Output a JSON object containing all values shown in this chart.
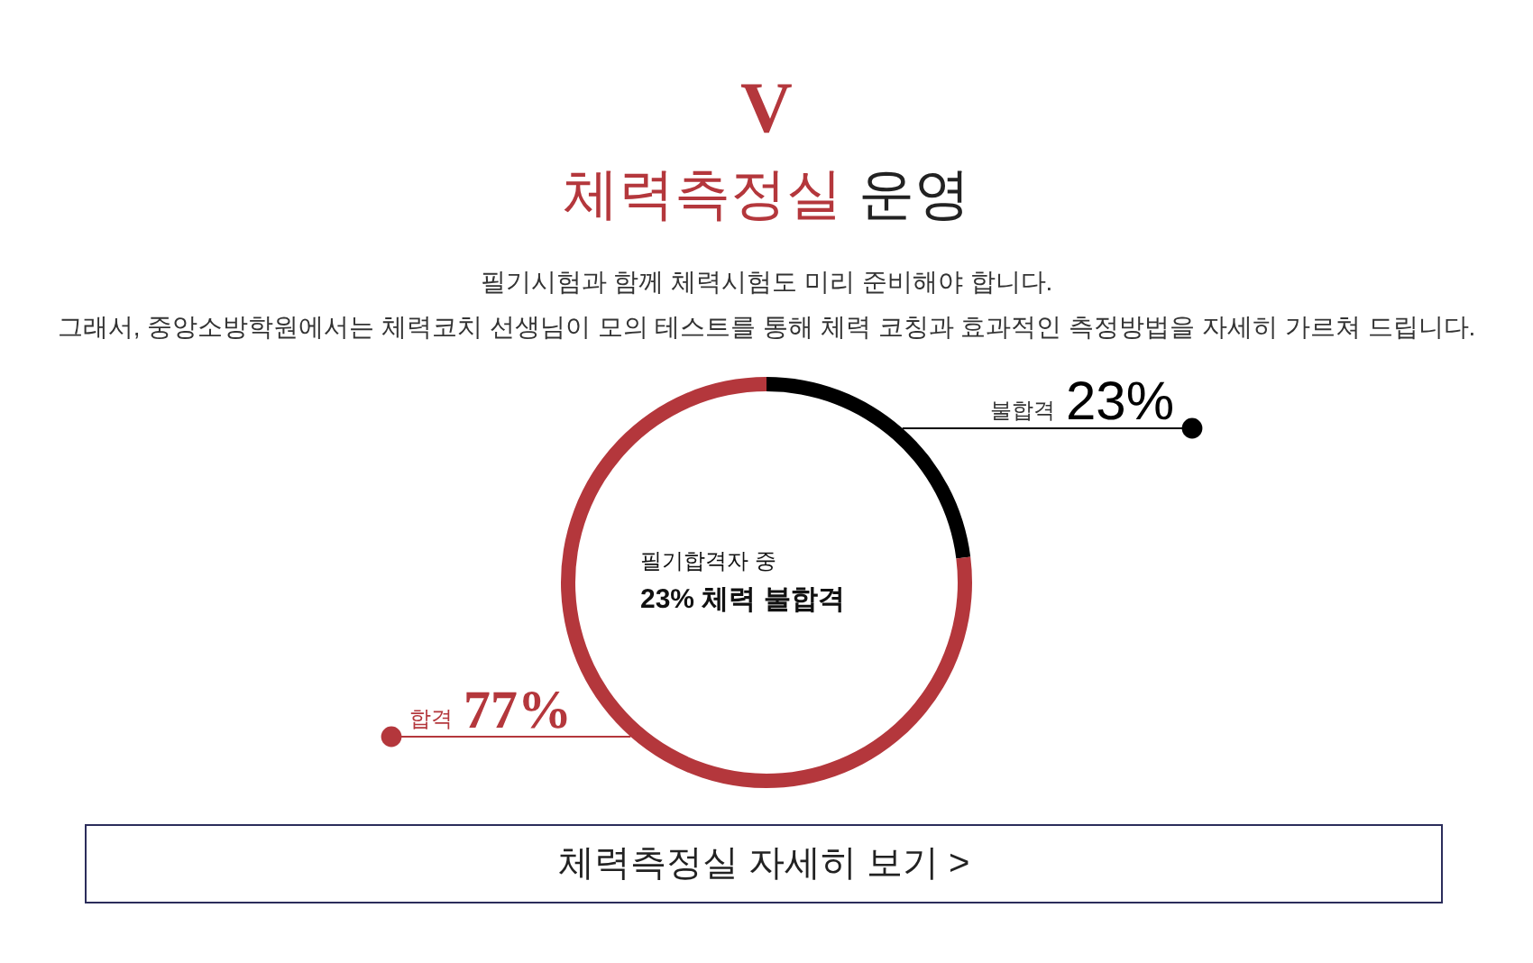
{
  "chart_data": {
    "type": "donut",
    "title": "체력측정실 운영",
    "subtitle": "필기시험과 함께 체력시험도 미리 준비해야 합니다.\n그래서, 중앙소방학원에서는 체력코치 선생님이 모의 테스트를 통해 체력 코칭과 효과적인 측정방법을 자세히 가르쳐 드립니다.",
    "categories": [
      "불합격",
      "합격"
    ],
    "values": [
      23,
      77
    ],
    "colors": [
      "#000000",
      "#b4373c"
    ],
    "value_labels": [
      "23%",
      "77%"
    ],
    "annotations": [
      "V",
      "필기합격자 중",
      "23% 체력 불합격",
      "체력측정실 자세히 보기 >"
    ]
  }
}
